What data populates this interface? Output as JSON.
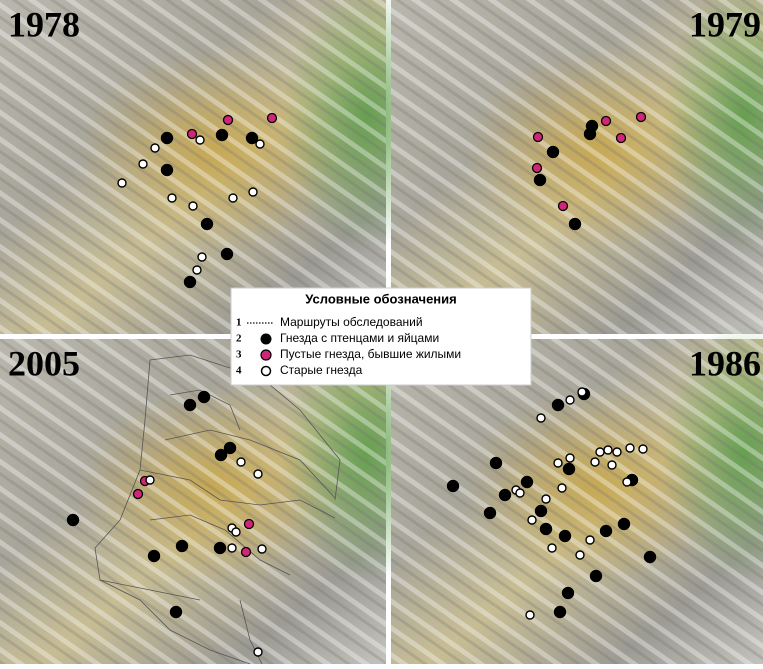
{
  "panels": [
    {
      "year": "1978"
    },
    {
      "year": "1979"
    },
    {
      "year": "2005"
    },
    {
      "year": "1986"
    }
  ],
  "legend": {
    "title": "Условные обозначения",
    "items": [
      {
        "number": "1",
        "label": "Маршруты обследований"
      },
      {
        "number": "2",
        "label": "Гнезда с птенцами и яйцами"
      },
      {
        "number": "3",
        "label": "Пустые гнезда, бывшие жилыми"
      },
      {
        "number": "4",
        "label": "Старые гнезда"
      }
    ]
  }
}
